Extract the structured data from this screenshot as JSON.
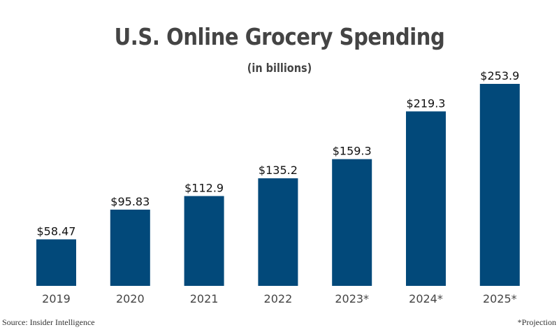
{
  "chart_data": {
    "type": "bar",
    "title": "U.S. Online Grocery Spending",
    "subtitle": "(in billions)",
    "xlabel": "",
    "ylabel": "",
    "ylim": [
      0,
      253.9
    ],
    "grid": false,
    "categories": [
      "2019",
      "2020",
      "2021",
      "2022",
      "2023*",
      "2024*",
      "2025*"
    ],
    "values": [
      58.47,
      95.83,
      112.9,
      135.2,
      159.3,
      219.3,
      253.9
    ],
    "data_labels": [
      "$58.47",
      "$95.83",
      "$112.9",
      "$135.2",
      "$159.3",
      "$219.3",
      "$253.9"
    ],
    "bar_color": "#02497A",
    "source": "Source: Insider Intelligence",
    "note": "*Projection"
  }
}
